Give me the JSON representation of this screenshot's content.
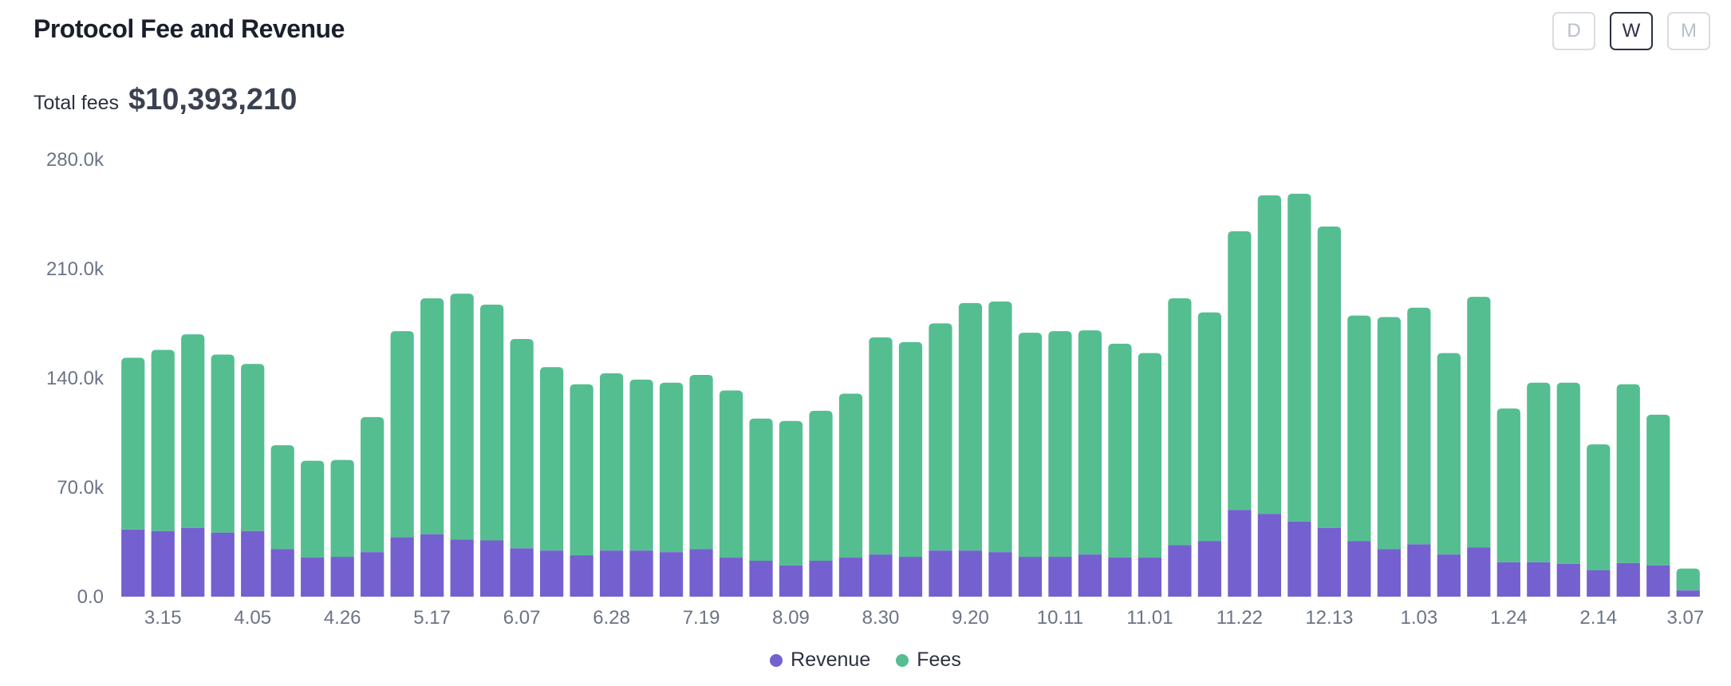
{
  "header": {
    "title": "Protocol Fee and Revenue"
  },
  "period_buttons": [
    {
      "label": "D",
      "active": false
    },
    {
      "label": "W",
      "active": true
    },
    {
      "label": "M",
      "active": false
    }
  ],
  "summary": {
    "label": "Total fees",
    "value": "$10,393,210"
  },
  "colors": {
    "revenue": "#7461cf",
    "fees": "#55be91",
    "text": "#1f2430",
    "axis_text": "#6b7385"
  },
  "chart_data": {
    "type": "bar",
    "stacked": true,
    "y_ticks": [
      "0.0",
      "70.0k",
      "140.0k",
      "210.0k",
      "280.0k"
    ],
    "ylim": [
      0,
      285000
    ],
    "x_tick_labels": [
      "3.15",
      "4.05",
      "4.26",
      "5.17",
      "6.07",
      "6.28",
      "7.19",
      "8.09",
      "8.30",
      "9.20",
      "10.11",
      "11.01",
      "11.22",
      "12.13",
      "1.03",
      "1.24",
      "2.14",
      "3.07"
    ],
    "series": [
      {
        "name": "Revenue",
        "color": "#7461cf",
        "values": [
          43000,
          42000,
          44000,
          41000,
          42000,
          30500,
          25000,
          25500,
          28500,
          38000,
          40000,
          36500,
          36000,
          31000,
          29500,
          26500,
          29500,
          29500,
          28500,
          30500,
          25000,
          23000,
          20000,
          23000,
          25000,
          27000,
          25500,
          29500,
          29500,
          28500,
          25500,
          25500,
          27000,
          25000,
          25000,
          33000,
          35500,
          55500,
          53000,
          48000,
          44000,
          35500,
          30500,
          33500,
          27000,
          31500,
          22000,
          22000,
          21000,
          17000,
          21500,
          20000,
          4000
        ]
      },
      {
        "name": "Fees",
        "color": "#55be91",
        "values": [
          110000,
          116000,
          124000,
          114000,
          107000,
          66500,
          62000,
          62000,
          86500,
          132000,
          151000,
          157500,
          151000,
          134000,
          117500,
          109500,
          113500,
          109500,
          108500,
          111500,
          107000,
          91000,
          92500,
          96000,
          105000,
          139000,
          137500,
          145500,
          158500,
          160500,
          143500,
          144500,
          143500,
          137000,
          131000,
          158000,
          146500,
          178500,
          204000,
          210000,
          193000,
          144500,
          148500,
          151500,
          129000,
          160500,
          98500,
          115000,
          116000,
          80500,
          114500,
          96500,
          14000
        ]
      }
    ]
  },
  "legend": {
    "items": [
      {
        "label": "Revenue",
        "color": "#7461cf"
      },
      {
        "label": "Fees",
        "color": "#55be91"
      }
    ]
  }
}
